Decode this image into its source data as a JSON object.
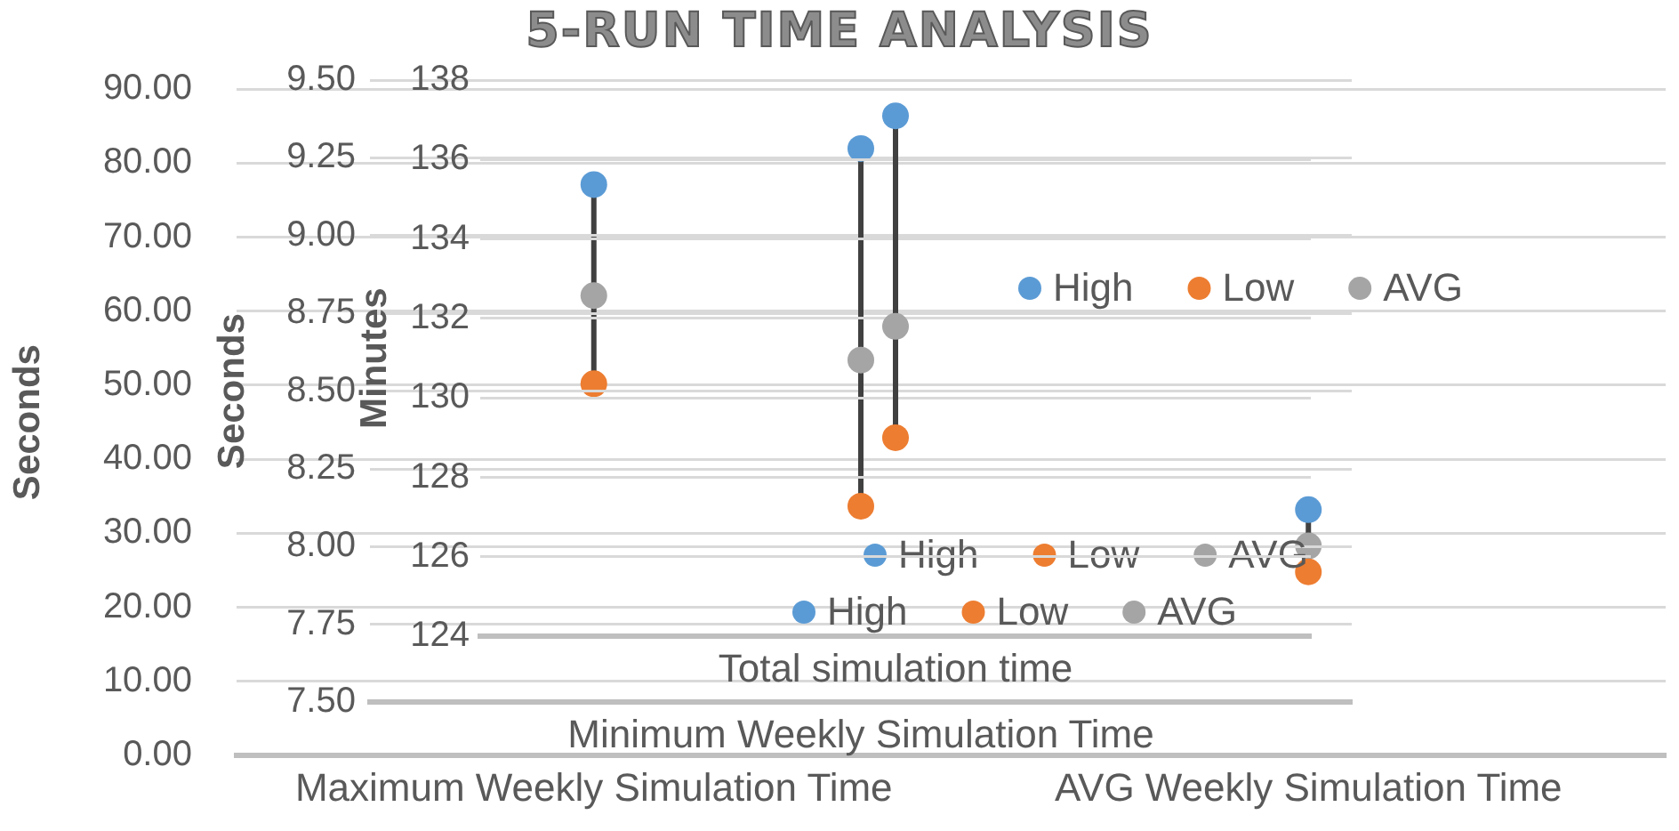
{
  "chart_data": [
    {
      "type": "scatter",
      "title": "5-RUN TIME ANALYSIS",
      "ylabel": "Seconds",
      "categories": [
        "Maximum Weekly Simulation Time",
        "AVG Weekly Simulation Time"
      ],
      "series": [
        {
          "name": "High",
          "color": "#5b9bd5",
          "values": [
            77.1,
            33.2
          ]
        },
        {
          "name": "Low",
          "color": "#ed7d31",
          "values": [
            50.2,
            24.8
          ]
        },
        {
          "name": "AVG",
          "color": "#a5a5a5",
          "values": [
            62.1,
            28.3
          ]
        }
      ],
      "ylim": [
        0,
        90
      ],
      "yticks": [
        {
          "value": 0,
          "label": "0.00"
        },
        {
          "value": 10,
          "label": "10.00"
        },
        {
          "value": 20,
          "label": "20.00"
        },
        {
          "value": 30,
          "label": "30.00"
        },
        {
          "value": 40,
          "label": "40.00"
        },
        {
          "value": 50,
          "label": "50.00"
        },
        {
          "value": 60,
          "label": "60.00"
        },
        {
          "value": 70,
          "label": "70.00"
        },
        {
          "value": 80,
          "label": "80.00"
        },
        {
          "value": 90,
          "label": "90.00"
        }
      ],
      "grid": "y",
      "legend": "right",
      "marker": "circle"
    },
    {
      "type": "scatter",
      "ylabel": "Seconds",
      "categories": [
        "Minimum Weekly Simulation Time"
      ],
      "series": [
        {
          "name": "High",
          "color": "#5b9bd5",
          "values": [
            9.28
          ]
        },
        {
          "name": "Low",
          "color": "#ed7d31",
          "values": [
            8.13
          ]
        },
        {
          "name": "AVG",
          "color": "#a5a5a5",
          "values": [
            8.6
          ]
        }
      ],
      "ylim": [
        7.5,
        9.5
      ],
      "yticks": [
        {
          "value": 7.5,
          "label": "7.50"
        },
        {
          "value": 7.75,
          "label": "7.75"
        },
        {
          "value": 8,
          "label": "8.00"
        },
        {
          "value": 8.25,
          "label": "8.25"
        },
        {
          "value": 8.5,
          "label": "8.50"
        },
        {
          "value": 8.75,
          "label": "8.75"
        },
        {
          "value": 9,
          "label": "9.00"
        },
        {
          "value": 9.25,
          "label": "9.25"
        },
        {
          "value": 9.5,
          "label": "9.50"
        }
      ],
      "grid": "y",
      "legend": "bottom",
      "marker": "circle"
    },
    {
      "type": "scatter",
      "ylabel": "Minutes",
      "categories": [
        "Total simulation time"
      ],
      "series": [
        {
          "name": "High",
          "color": "#5b9bd5",
          "values": [
            137.1
          ]
        },
        {
          "name": "Low",
          "color": "#ed7d31",
          "values": [
            129.0
          ]
        },
        {
          "name": "AVG",
          "color": "#a5a5a5",
          "values": [
            131.8
          ]
        }
      ],
      "ylim": [
        124,
        138
      ],
      "yticks": [
        124,
        126,
        128,
        130,
        132,
        134,
        136,
        138
      ],
      "grid": "y",
      "legend": "bottom",
      "marker": "circle"
    }
  ]
}
